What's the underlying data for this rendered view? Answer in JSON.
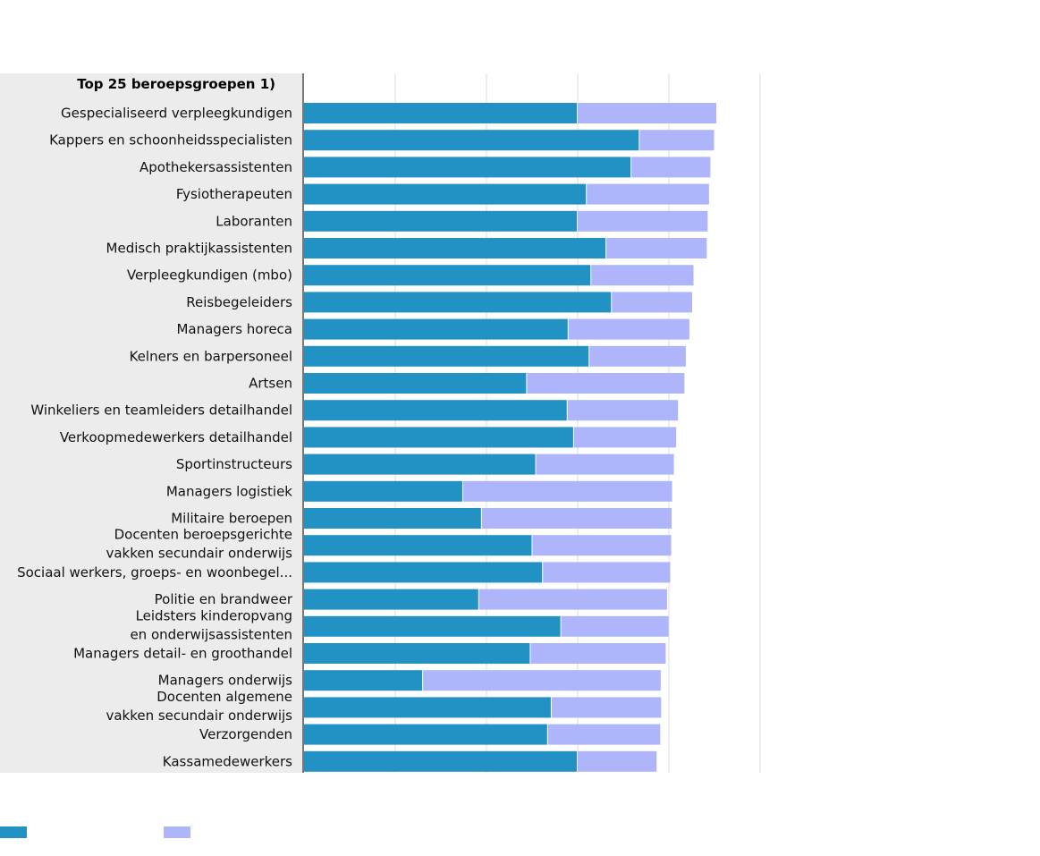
{
  "chart_data": {
    "type": "bar",
    "orientation": "horizontal",
    "stacked": true,
    "header": "Top 25 beroepsgroepen 1)",
    "categories": [
      [
        "Gespecialiseerd verpleegkundigen"
      ],
      [
        "Kappers en schoonheidsspecialisten"
      ],
      [
        "Apothekersassistenten"
      ],
      [
        "Fysiotherapeuten"
      ],
      [
        "Laboranten"
      ],
      [
        "Medisch praktijkassistenten"
      ],
      [
        "Verpleegkundigen (mbo)"
      ],
      [
        "Reisbegeleiders"
      ],
      [
        "Managers horeca"
      ],
      [
        "Kelners en barpersoneel"
      ],
      [
        "Artsen"
      ],
      [
        "Winkeliers en teamleiders detailhandel"
      ],
      [
        "Verkoopmedewerkers detailhandel"
      ],
      [
        "Sportinstructeurs"
      ],
      [
        "Managers logistiek"
      ],
      [
        "Militaire beroepen"
      ],
      [
        "Docenten beroepsgerichte",
        "vakken secundair onderwijs"
      ],
      [
        "Sociaal werkers, groeps- en woonbegel..."
      ],
      [
        "Politie en brandweer"
      ],
      [
        "Leidsters kinderopvang",
        "en onderwijsassistenten"
      ],
      [
        "Managers detail- en groothandel"
      ],
      [
        "Managers onderwijs"
      ],
      [
        "Docenten algemene",
        "vakken secundair onderwijs"
      ],
      [
        "Verzorgenden"
      ],
      [
        "Kassamedewerkers"
      ]
    ],
    "series": [
      {
        "color": "#2292c4",
        "values": [
          59.8,
          73.4,
          71.6,
          61.8,
          59.8,
          66.1,
          62.8,
          67.3,
          57.8,
          62.4,
          48.7,
          57.6,
          59.0,
          50.7,
          34.7,
          38.8,
          49.9,
          52.2,
          38.2,
          56.2,
          49.5,
          25.9,
          54.1,
          53.3,
          59.8
        ]
      },
      {
        "color": "#aeb5fb",
        "values": [
          30.6,
          16.5,
          17.5,
          27.0,
          28.7,
          22.2,
          22.6,
          17.8,
          26.7,
          21.3,
          34.7,
          24.4,
          22.6,
          30.4,
          46.0,
          41.8,
          30.6,
          28.1,
          41.4,
          23.7,
          29.8,
          52.3,
          24.2,
          24.8,
          17.5
        ]
      }
    ],
    "xlim": [
      0,
      100
    ],
    "xticks": [
      0,
      20,
      40,
      60,
      80,
      100
    ],
    "xtick_labels_visible": false,
    "grid": true,
    "legend_position": "bottom-left",
    "legend_labels_visible": false
  }
}
